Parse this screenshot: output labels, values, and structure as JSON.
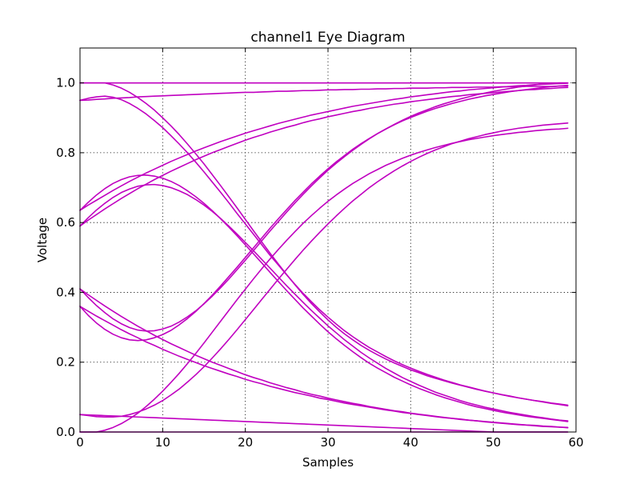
{
  "chart_data": {
    "type": "line",
    "title": "channel1 Eye Diagram",
    "xlabel": "Samples",
    "ylabel": "Voltage",
    "xlim": [
      0,
      60
    ],
    "ylim": [
      0,
      1.1
    ],
    "xticks": [
      0,
      10,
      20,
      30,
      40,
      50,
      60
    ],
    "yticks": [
      0.0,
      0.2,
      0.4,
      0.6,
      0.8,
      1.0
    ],
    "x_tick_labels": [
      "0",
      "10",
      "20",
      "30",
      "40",
      "50",
      "60"
    ],
    "y_tick_labels": [
      "0.0",
      "0.2",
      "0.4",
      "0.6",
      "0.8",
      "1.0"
    ],
    "grid": true,
    "line_color": "#c000c0",
    "trace_x": [
      0,
      1,
      2,
      3,
      4,
      5,
      6,
      7,
      8,
      9,
      10,
      11,
      12,
      13,
      14,
      15,
      16,
      17,
      18,
      19,
      20,
      21,
      22,
      23,
      24,
      25,
      26,
      27,
      28,
      29,
      30,
      31,
      32,
      33,
      34,
      35,
      36,
      37,
      38,
      39,
      40,
      41,
      42,
      43,
      44,
      45,
      46,
      47,
      48,
      49,
      50,
      51,
      52,
      53,
      54,
      55,
      56,
      57,
      58,
      59
    ],
    "series": [
      {
        "values": [
          1.0,
          1.0,
          1.0,
          1.0,
          1.0,
          1.0,
          1.0,
          1.0,
          1.0,
          1.0,
          1.0,
          1.0,
          1.0,
          1.0,
          1.0,
          1.0,
          1.0,
          1.0,
          1.0,
          1.0,
          1.0,
          1.0,
          1.0,
          1.0,
          1.0,
          1.0,
          1.0,
          1.0,
          1.0,
          1.0,
          1.0,
          1.0,
          1.0,
          1.0,
          1.0,
          1.0,
          1.0,
          1.0,
          1.0,
          1.0,
          1.0,
          1.0,
          1.0,
          1.0,
          1.0,
          1.0,
          1.0,
          1.0,
          1.0,
          1.0,
          1.0,
          1.0,
          1.0,
          1.0,
          1.0,
          1.0,
          1.0,
          1.0,
          1.0,
          1.0
        ]
      },
      {
        "values": [
          0.95,
          0.951,
          0.953,
          0.954,
          0.956,
          0.957,
          0.958,
          0.96,
          0.961,
          0.962,
          0.963,
          0.964,
          0.965,
          0.966,
          0.967,
          0.968,
          0.969,
          0.97,
          0.971,
          0.972,
          0.973,
          0.973,
          0.974,
          0.975,
          0.976,
          0.976,
          0.977,
          0.978,
          0.978,
          0.979,
          0.98,
          0.98,
          0.981,
          0.981,
          0.982,
          0.982,
          0.983,
          0.983,
          0.984,
          0.984,
          0.985,
          0.985,
          0.985,
          0.986,
          0.986,
          0.987,
          0.987,
          0.987,
          0.988,
          0.988,
          0.988,
          0.989,
          0.989,
          0.989,
          0.99,
          0.99,
          0.99,
          0.99,
          0.991,
          0.991
        ]
      },
      {
        "values": [
          1.0,
          1.0,
          1.0,
          1.0,
          0.994,
          0.985,
          0.973,
          0.958,
          0.941,
          0.922,
          0.9,
          0.877,
          0.852,
          0.825,
          0.797,
          0.768,
          0.737,
          0.706,
          0.674,
          0.642,
          0.609,
          0.576,
          0.544,
          0.512,
          0.481,
          0.451,
          0.422,
          0.394,
          0.368,
          0.344,
          0.321,
          0.3,
          0.281,
          0.264,
          0.248,
          0.234,
          0.221,
          0.209,
          0.198,
          0.188,
          0.178,
          0.17,
          0.161,
          0.154,
          0.147,
          0.14,
          0.134,
          0.128,
          0.122,
          0.117,
          0.112,
          0.107,
          0.103,
          0.098,
          0.094,
          0.09,
          0.087,
          0.083,
          0.08,
          0.077
        ]
      },
      {
        "values": [
          0.95,
          0.956,
          0.96,
          0.962,
          0.959,
          0.952,
          0.941,
          0.927,
          0.911,
          0.892,
          0.872,
          0.849,
          0.825,
          0.8,
          0.773,
          0.745,
          0.716,
          0.687,
          0.657,
          0.626,
          0.596,
          0.566,
          0.536,
          0.506,
          0.478,
          0.45,
          0.423,
          0.397,
          0.373,
          0.35,
          0.329,
          0.309,
          0.29,
          0.273,
          0.257,
          0.242,
          0.229,
          0.216,
          0.204,
          0.193,
          0.183,
          0.174,
          0.165,
          0.157,
          0.149,
          0.142,
          0.135,
          0.129,
          0.123,
          0.117,
          0.112,
          0.107,
          0.102,
          0.098,
          0.094,
          0.09,
          0.086,
          0.082,
          0.079,
          0.075
        ]
      },
      {
        "values": [
          0.635,
          0.65,
          0.664,
          0.678,
          0.692,
          0.705,
          0.718,
          0.73,
          0.742,
          0.753,
          0.764,
          0.775,
          0.785,
          0.795,
          0.805,
          0.814,
          0.823,
          0.832,
          0.84,
          0.848,
          0.856,
          0.863,
          0.87,
          0.877,
          0.884,
          0.89,
          0.896,
          0.902,
          0.908,
          0.913,
          0.918,
          0.923,
          0.928,
          0.933,
          0.937,
          0.941,
          0.945,
          0.949,
          0.953,
          0.956,
          0.96,
          0.963,
          0.966,
          0.969,
          0.972,
          0.975,
          0.977,
          0.98,
          0.982,
          0.984,
          0.986,
          0.988,
          0.99,
          0.992,
          0.993,
          0.995,
          0.996,
          0.997,
          0.998,
          0.999
        ]
      },
      {
        "values": [
          0.59,
          0.607,
          0.623,
          0.639,
          0.654,
          0.669,
          0.683,
          0.697,
          0.71,
          0.723,
          0.735,
          0.747,
          0.758,
          0.769,
          0.78,
          0.79,
          0.8,
          0.809,
          0.818,
          0.827,
          0.836,
          0.844,
          0.851,
          0.859,
          0.866,
          0.873,
          0.879,
          0.886,
          0.892,
          0.897,
          0.903,
          0.908,
          0.913,
          0.918,
          0.922,
          0.927,
          0.931,
          0.935,
          0.939,
          0.942,
          0.946,
          0.949,
          0.952,
          0.955,
          0.958,
          0.961,
          0.963,
          0.966,
          0.968,
          0.97,
          0.972,
          0.974,
          0.976,
          0.978,
          0.98,
          0.981,
          0.983,
          0.984,
          0.986,
          0.987
        ]
      },
      {
        "values": [
          0.635,
          0.658,
          0.679,
          0.697,
          0.712,
          0.723,
          0.731,
          0.735,
          0.736,
          0.733,
          0.727,
          0.718,
          0.706,
          0.691,
          0.674,
          0.655,
          0.634,
          0.611,
          0.587,
          0.562,
          0.536,
          0.51,
          0.484,
          0.457,
          0.431,
          0.405,
          0.38,
          0.355,
          0.332,
          0.309,
          0.287,
          0.267,
          0.248,
          0.23,
          0.213,
          0.197,
          0.183,
          0.17,
          0.157,
          0.146,
          0.135,
          0.125,
          0.116,
          0.107,
          0.099,
          0.092,
          0.085,
          0.078,
          0.072,
          0.067,
          0.062,
          0.057,
          0.053,
          0.049,
          0.045,
          0.042,
          0.039,
          0.036,
          0.033,
          0.03
        ]
      },
      {
        "values": [
          0.59,
          0.614,
          0.636,
          0.655,
          0.672,
          0.686,
          0.696,
          0.704,
          0.708,
          0.709,
          0.706,
          0.7,
          0.691,
          0.68,
          0.666,
          0.65,
          0.632,
          0.612,
          0.59,
          0.567,
          0.543,
          0.519,
          0.494,
          0.469,
          0.444,
          0.419,
          0.395,
          0.371,
          0.348,
          0.326,
          0.304,
          0.284,
          0.264,
          0.246,
          0.228,
          0.212,
          0.197,
          0.182,
          0.169,
          0.156,
          0.145,
          0.134,
          0.124,
          0.114,
          0.106,
          0.098,
          0.09,
          0.083,
          0.077,
          0.071,
          0.066,
          0.061,
          0.056,
          0.052,
          0.048,
          0.044,
          0.041,
          0.037,
          0.034,
          0.032
        ]
      },
      {
        "values": [
          0.41,
          0.385,
          0.362,
          0.342,
          0.324,
          0.31,
          0.299,
          0.292,
          0.289,
          0.29,
          0.295,
          0.303,
          0.315,
          0.33,
          0.347,
          0.367,
          0.389,
          0.413,
          0.438,
          0.465,
          0.492,
          0.52,
          0.548,
          0.576,
          0.603,
          0.63,
          0.656,
          0.681,
          0.705,
          0.728,
          0.75,
          0.77,
          0.789,
          0.807,
          0.824,
          0.84,
          0.855,
          0.868,
          0.881,
          0.893,
          0.904,
          0.914,
          0.923,
          0.932,
          0.94,
          0.947,
          0.954,
          0.96,
          0.966,
          0.971,
          0.976,
          0.98,
          0.984,
          0.988,
          0.991,
          0.994,
          0.997,
          0.999,
          1.0,
          1.0
        ]
      },
      {
        "values": [
          0.36,
          0.334,
          0.312,
          0.294,
          0.28,
          0.27,
          0.264,
          0.262,
          0.264,
          0.27,
          0.279,
          0.291,
          0.307,
          0.325,
          0.345,
          0.368,
          0.392,
          0.418,
          0.445,
          0.472,
          0.5,
          0.528,
          0.556,
          0.584,
          0.611,
          0.637,
          0.663,
          0.687,
          0.711,
          0.733,
          0.754,
          0.774,
          0.792,
          0.81,
          0.826,
          0.841,
          0.855,
          0.868,
          0.88,
          0.891,
          0.901,
          0.91,
          0.919,
          0.927,
          0.934,
          0.941,
          0.947,
          0.953,
          0.958,
          0.963,
          0.967,
          0.971,
          0.975,
          0.978,
          0.981,
          0.984,
          0.987,
          0.989,
          0.991,
          0.993
        ]
      },
      {
        "values": [
          0.41,
          0.393,
          0.377,
          0.361,
          0.346,
          0.331,
          0.317,
          0.303,
          0.29,
          0.277,
          0.265,
          0.253,
          0.242,
          0.231,
          0.22,
          0.21,
          0.2,
          0.191,
          0.182,
          0.173,
          0.164,
          0.156,
          0.149,
          0.141,
          0.134,
          0.127,
          0.121,
          0.114,
          0.108,
          0.103,
          0.097,
          0.092,
          0.087,
          0.082,
          0.078,
          0.073,
          0.069,
          0.065,
          0.061,
          0.058,
          0.054,
          0.051,
          0.048,
          0.045,
          0.042,
          0.039,
          0.037,
          0.034,
          0.032,
          0.03,
          0.028,
          0.026,
          0.024,
          0.022,
          0.02,
          0.019,
          0.017,
          0.016,
          0.014,
          0.013
        ]
      },
      {
        "values": [
          0.36,
          0.346,
          0.332,
          0.319,
          0.306,
          0.293,
          0.281,
          0.27,
          0.258,
          0.248,
          0.237,
          0.227,
          0.217,
          0.208,
          0.199,
          0.19,
          0.182,
          0.174,
          0.166,
          0.159,
          0.151,
          0.144,
          0.138,
          0.131,
          0.125,
          0.119,
          0.113,
          0.108,
          0.103,
          0.097,
          0.093,
          0.088,
          0.083,
          0.079,
          0.075,
          0.071,
          0.067,
          0.063,
          0.06,
          0.056,
          0.053,
          0.05,
          0.047,
          0.044,
          0.041,
          0.039,
          0.036,
          0.034,
          0.032,
          0.029,
          0.027,
          0.025,
          0.023,
          0.021,
          0.02,
          0.018,
          0.016,
          0.015,
          0.014,
          0.012
        ]
      },
      {
        "values": [
          0.05,
          0.047,
          0.044,
          0.043,
          0.043,
          0.045,
          0.05,
          0.057,
          0.066,
          0.077,
          0.09,
          0.106,
          0.123,
          0.143,
          0.164,
          0.187,
          0.212,
          0.238,
          0.265,
          0.293,
          0.322,
          0.351,
          0.38,
          0.409,
          0.438,
          0.466,
          0.494,
          0.521,
          0.547,
          0.572,
          0.596,
          0.619,
          0.641,
          0.662,
          0.681,
          0.7,
          0.717,
          0.733,
          0.748,
          0.762,
          0.775,
          0.787,
          0.798,
          0.808,
          0.817,
          0.826,
          0.833,
          0.84,
          0.846,
          0.852,
          0.857,
          0.862,
          0.866,
          0.87,
          0.873,
          0.876,
          0.879,
          0.881,
          0.883,
          0.885
        ]
      },
      {
        "values": [
          0.0,
          0.0,
          0.0,
          0.005,
          0.013,
          0.024,
          0.038,
          0.054,
          0.073,
          0.094,
          0.117,
          0.142,
          0.168,
          0.196,
          0.225,
          0.255,
          0.286,
          0.317,
          0.348,
          0.379,
          0.409,
          0.439,
          0.468,
          0.496,
          0.523,
          0.549,
          0.574,
          0.598,
          0.62,
          0.641,
          0.661,
          0.679,
          0.696,
          0.712,
          0.726,
          0.74,
          0.752,
          0.764,
          0.774,
          0.784,
          0.793,
          0.801,
          0.808,
          0.815,
          0.821,
          0.827,
          0.832,
          0.837,
          0.841,
          0.845,
          0.849,
          0.852,
          0.855,
          0.858,
          0.86,
          0.863,
          0.865,
          0.867,
          0.868,
          0.87
        ]
      },
      {
        "values": [
          0.05,
          0.049,
          0.048,
          0.047,
          0.046,
          0.045,
          0.044,
          0.043,
          0.042,
          0.041,
          0.04,
          0.039,
          0.038,
          0.037,
          0.036,
          0.035,
          0.034,
          0.033,
          0.032,
          0.031,
          0.03,
          0.029,
          0.028,
          0.027,
          0.026,
          0.025,
          0.024,
          0.023,
          0.022,
          0.021,
          0.02,
          0.019,
          0.018,
          0.017,
          0.016,
          0.015,
          0.014,
          0.013,
          0.012,
          0.011,
          0.01,
          0.009,
          0.008,
          0.007,
          0.006,
          0.005,
          0.004,
          0.003,
          0.002,
          0.001,
          0.0,
          0.0,
          0.0,
          0.0,
          0.0,
          0.0,
          0.0,
          0.0,
          0.0,
          0.0
        ]
      },
      {
        "values": [
          0.0,
          0.0,
          0.0,
          0.0,
          0.0,
          0.0,
          0.0,
          0.0,
          0.0,
          0.0,
          0.0,
          0.0,
          0.0,
          0.0,
          0.0,
          0.0,
          0.0,
          0.0,
          0.0,
          0.0,
          0.0,
          0.0,
          0.0,
          0.0,
          0.0,
          0.0,
          0.0,
          0.0,
          0.0,
          0.0,
          0.0,
          0.0,
          0.0,
          0.0,
          0.0,
          0.0,
          0.0,
          0.0,
          0.0,
          0.0,
          0.0,
          0.0,
          0.0,
          0.0,
          0.0,
          0.0,
          0.0,
          0.0,
          0.0,
          0.0,
          0.0,
          0.0,
          0.0,
          0.0,
          0.0,
          0.0,
          0.0,
          0.0,
          0.0,
          0.0
        ]
      }
    ]
  }
}
